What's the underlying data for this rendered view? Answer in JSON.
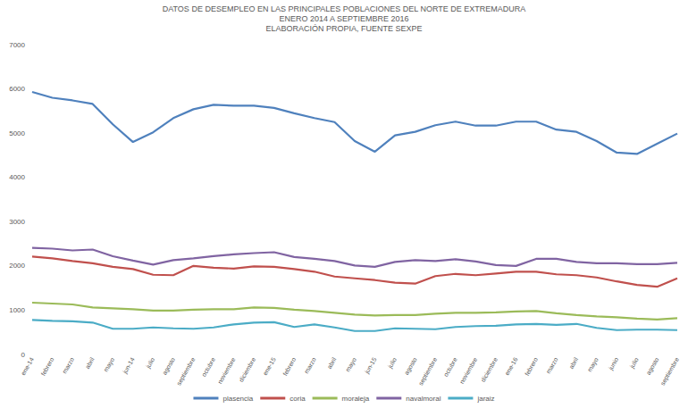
{
  "chart_data": {
    "type": "line",
    "title": "DATOS DE DESEMPLEO EN LAS PRINCIPALES POBLACIONES DEL NORTE DE EXTREMADURA",
    "subtitle": "ENERO 2014 A SEPTIEMBRE 2016\nELABORACIÓN PROPIA, FUENTE SEXPE",
    "categories": [
      "ene-14",
      "febrero",
      "marzo",
      "abril",
      "mayo",
      "jun-14",
      "julio",
      "agosto",
      "septiembre",
      "octubre",
      "noviembre",
      "diciembre",
      "ene-15",
      "febrero",
      "marzo",
      "abril",
      "mayo",
      "jun-15",
      "julio",
      "agosto",
      "septiembre",
      "octubre",
      "noviembre",
      "diciembre",
      "ene-16",
      "febrero",
      "marzo",
      "abril",
      "mayo",
      "junio",
      "julio",
      "agosto",
      "septiembre"
    ],
    "series": [
      {
        "name": "plasencia",
        "color": "#4f81bd",
        "values": [
          5930,
          5800,
          5740,
          5660,
          5200,
          4800,
          5020,
          5340,
          5540,
          5640,
          5620,
          5620,
          5570,
          5450,
          5340,
          5250,
          4820,
          4580,
          4950,
          5030,
          5180,
          5260,
          5170,
          5170,
          5260,
          5260,
          5080,
          5030,
          4820,
          4560,
          4530,
          4760,
          4990
        ]
      },
      {
        "name": "coria",
        "color": "#c0504d",
        "values": [
          2210,
          2170,
          2110,
          2060,
          1980,
          1930,
          1800,
          1790,
          2000,
          1960,
          1940,
          1990,
          1980,
          1930,
          1870,
          1760,
          1720,
          1680,
          1620,
          1600,
          1770,
          1820,
          1790,
          1830,
          1870,
          1870,
          1810,
          1790,
          1740,
          1650,
          1570,
          1530,
          1720
        ]
      },
      {
        "name": "moraleja",
        "color": "#9bbb59",
        "values": [
          1170,
          1150,
          1130,
          1060,
          1040,
          1020,
          990,
          990,
          1010,
          1020,
          1020,
          1060,
          1050,
          1010,
          980,
          940,
          900,
          880,
          890,
          890,
          920,
          940,
          940,
          950,
          970,
          980,
          930,
          890,
          860,
          840,
          810,
          790,
          820
        ]
      },
      {
        "name": "navalmoral",
        "color": "#8064a2",
        "values": [
          2410,
          2390,
          2350,
          2370,
          2220,
          2120,
          2030,
          2130,
          2170,
          2220,
          2260,
          2290,
          2310,
          2200,
          2160,
          2110,
          2010,
          1980,
          2090,
          2130,
          2110,
          2150,
          2100,
          2020,
          2000,
          2160,
          2160,
          2090,
          2060,
          2060,
          2040,
          2040,
          2070
        ]
      },
      {
        "name": "jaraiz",
        "color": "#4bacc6",
        "values": [
          780,
          760,
          750,
          720,
          580,
          580,
          610,
          590,
          580,
          610,
          680,
          720,
          730,
          620,
          680,
          610,
          530,
          530,
          590,
          580,
          570,
          620,
          640,
          650,
          680,
          690,
          670,
          690,
          600,
          550,
          560,
          560,
          550
        ]
      }
    ],
    "ylim": [
      0,
      7000
    ],
    "yticks": [
      0,
      1000,
      2000,
      3000,
      4000,
      5000,
      6000,
      7000
    ],
    "grid": false,
    "legend": "bottom"
  }
}
